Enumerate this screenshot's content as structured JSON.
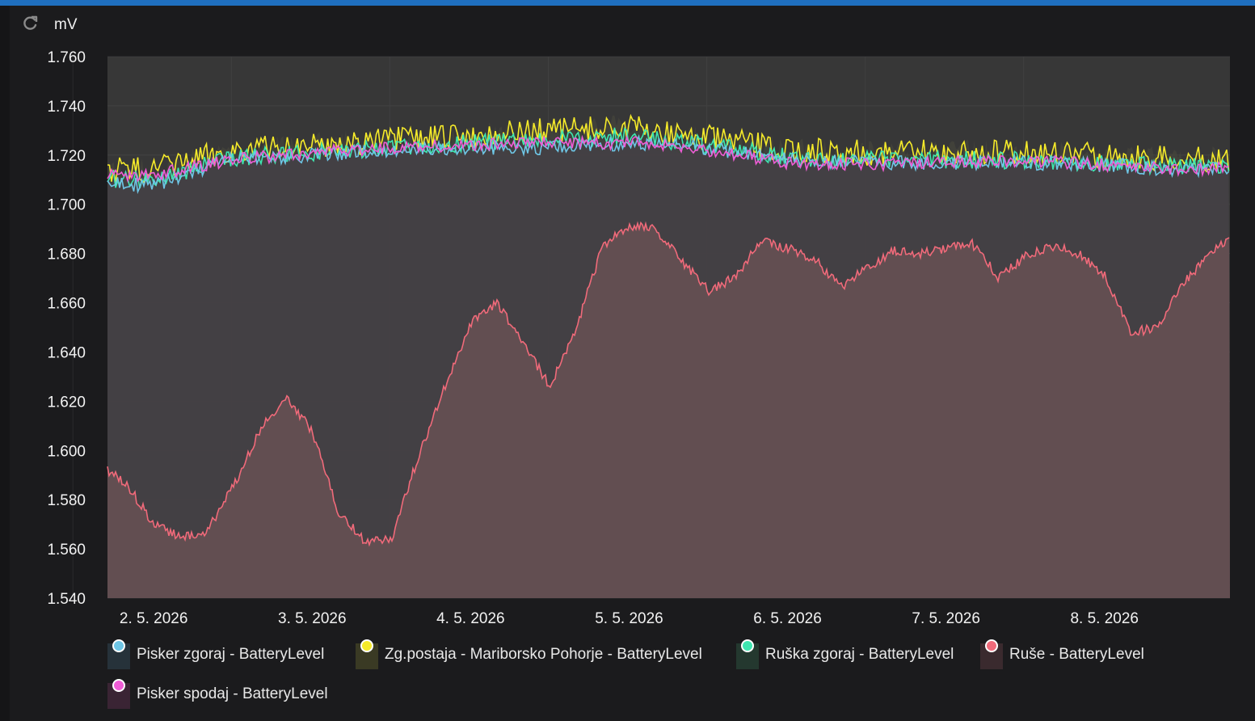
{
  "unit_label": "mV",
  "icons": {
    "refresh": "refresh-icon"
  },
  "chart_data": {
    "type": "area",
    "ylabel": "mV",
    "ylim": [
      1.54,
      1.76
    ],
    "yticks": [
      "1.760",
      "1.740",
      "1.720",
      "1.700",
      "1.680",
      "1.660",
      "1.640",
      "1.620",
      "1.600",
      "1.580",
      "1.560",
      "1.540"
    ],
    "x_range": [
      "2026-05-01T17:00",
      "2026-05-08T19:00"
    ],
    "xticks": [
      {
        "date": "2026-05-02",
        "label": "2. 5. 2026"
      },
      {
        "date": "2026-05-03",
        "label": "3. 5. 2026"
      },
      {
        "date": "2026-05-04",
        "label": "4. 5. 2026"
      },
      {
        "date": "2026-05-05",
        "label": "5. 5. 2026"
      },
      {
        "date": "2026-05-06",
        "label": "6. 5. 2026"
      },
      {
        "date": "2026-05-07",
        "label": "7. 5. 2026"
      },
      {
        "date": "2026-05-08",
        "label": "8. 5. 2026"
      }
    ],
    "grid": true,
    "legend_position": "bottom",
    "series": [
      {
        "name": "Pisker zgoraj - BatteryLevel",
        "color": "#6ec6e6",
        "fill": "#26323a",
        "x": [
          "2026-05-01T17:00",
          "2026-05-02T00:00",
          "2026-05-02T12:00",
          "2026-05-03T00:00",
          "2026-05-03T12:00",
          "2026-05-04T00:00",
          "2026-05-04T12:00",
          "2026-05-05T00:00",
          "2026-05-05T12:00",
          "2026-05-06T00:00",
          "2026-05-06T12:00",
          "2026-05-07T00:00",
          "2026-05-07T12:00",
          "2026-05-08T00:00",
          "2026-05-08T12:00",
          "2026-05-08T19:00"
        ],
        "values": [
          1.708,
          1.708,
          1.718,
          1.72,
          1.722,
          1.723,
          1.723,
          1.725,
          1.723,
          1.718,
          1.717,
          1.717,
          1.717,
          1.716,
          1.714,
          1.715
        ]
      },
      {
        "name": "Zg.postaja - Mariborsko Pohorje - BatteryLevel",
        "color": "#f5ea2a",
        "fill": "#3a3a24",
        "x": [
          "2026-05-01T17:00",
          "2026-05-02T00:00",
          "2026-05-02T12:00",
          "2026-05-03T00:00",
          "2026-05-03T12:00",
          "2026-05-04T00:00",
          "2026-05-04T12:00",
          "2026-05-05T00:00",
          "2026-05-05T12:00",
          "2026-05-06T00:00",
          "2026-05-06T12:00",
          "2026-05-07T00:00",
          "2026-05-07T12:00",
          "2026-05-08T00:00",
          "2026-05-08T12:00",
          "2026-05-08T19:00"
        ],
        "values": [
          1.714,
          1.714,
          1.722,
          1.724,
          1.726,
          1.728,
          1.73,
          1.731,
          1.727,
          1.722,
          1.721,
          1.721,
          1.721,
          1.72,
          1.718,
          1.719
        ]
      },
      {
        "name": "Ruška zgoraj - BatteryLevel",
        "color": "#3ee6b0",
        "fill": "#24382f",
        "x": [
          "2026-05-01T17:00",
          "2026-05-02T00:00",
          "2026-05-02T12:00",
          "2026-05-03T00:00",
          "2026-05-03T12:00",
          "2026-05-04T00:00",
          "2026-05-04T12:00",
          "2026-05-05T00:00",
          "2026-05-05T12:00",
          "2026-05-06T00:00",
          "2026-05-06T12:00",
          "2026-05-07T00:00",
          "2026-05-07T12:00",
          "2026-05-08T00:00",
          "2026-05-08T12:00",
          "2026-05-08T19:00"
        ],
        "values": [
          1.71,
          1.71,
          1.719,
          1.721,
          1.723,
          1.725,
          1.726,
          1.728,
          1.724,
          1.719,
          1.718,
          1.718,
          1.718,
          1.717,
          1.715,
          1.716
        ]
      },
      {
        "name": "Ruše - BatteryLevel",
        "color": "#f06a7a",
        "fill": "#3a2a2e",
        "x": [
          "2026-05-01T17:00",
          "2026-05-01T20:00",
          "2026-05-02T00:00",
          "2026-05-02T04:00",
          "2026-05-02T08:00",
          "2026-05-02T12:00",
          "2026-05-02T16:00",
          "2026-05-02T20:00",
          "2026-05-03T00:00",
          "2026-05-03T04:00",
          "2026-05-03T08:00",
          "2026-05-03T12:00",
          "2026-05-03T16:00",
          "2026-05-03T20:00",
          "2026-05-04T00:00",
          "2026-05-04T04:00",
          "2026-05-04T08:00",
          "2026-05-04T12:00",
          "2026-05-04T16:00",
          "2026-05-04T20:00",
          "2026-05-05T00:00",
          "2026-05-05T04:00",
          "2026-05-05T08:00",
          "2026-05-05T12:00",
          "2026-05-05T16:00",
          "2026-05-05T20:00",
          "2026-05-06T00:00",
          "2026-05-06T04:00",
          "2026-05-06T08:00",
          "2026-05-06T12:00",
          "2026-05-06T16:00",
          "2026-05-06T20:00",
          "2026-05-07T00:00",
          "2026-05-07T04:00",
          "2026-05-07T08:00",
          "2026-05-07T12:00",
          "2026-05-07T16:00",
          "2026-05-07T20:00",
          "2026-05-08T00:00",
          "2026-05-08T04:00",
          "2026-05-08T08:00",
          "2026-05-08T12:00",
          "2026-05-08T16:00",
          "2026-05-08T19:00"
        ],
        "values": [
          1.592,
          1.586,
          1.57,
          1.565,
          1.567,
          1.585,
          1.608,
          1.622,
          1.608,
          1.575,
          1.563,
          1.564,
          1.597,
          1.625,
          1.652,
          1.66,
          1.644,
          1.626,
          1.65,
          1.683,
          1.691,
          1.69,
          1.677,
          1.665,
          1.67,
          1.685,
          1.682,
          1.678,
          1.666,
          1.674,
          1.681,
          1.68,
          1.682,
          1.684,
          1.67,
          1.679,
          1.683,
          1.68,
          1.671,
          1.648,
          1.65,
          1.668,
          1.68,
          1.686
        ]
      },
      {
        "name": "Pisker spodaj - BatteryLevel",
        "color": "#f05cd6",
        "fill": "#3a2434",
        "x": [
          "2026-05-01T17:00",
          "2026-05-02T00:00",
          "2026-05-02T12:00",
          "2026-05-03T00:00",
          "2026-05-03T12:00",
          "2026-05-04T00:00",
          "2026-05-04T12:00",
          "2026-05-05T00:00",
          "2026-05-05T12:00",
          "2026-05-06T00:00",
          "2026-05-06T12:00",
          "2026-05-07T00:00",
          "2026-05-07T12:00",
          "2026-05-08T00:00",
          "2026-05-08T12:00",
          "2026-05-08T19:00"
        ],
        "values": [
          1.712,
          1.712,
          1.718,
          1.721,
          1.723,
          1.724,
          1.725,
          1.725,
          1.722,
          1.717,
          1.716,
          1.717,
          1.718,
          1.716,
          1.714,
          1.715
        ]
      }
    ]
  }
}
